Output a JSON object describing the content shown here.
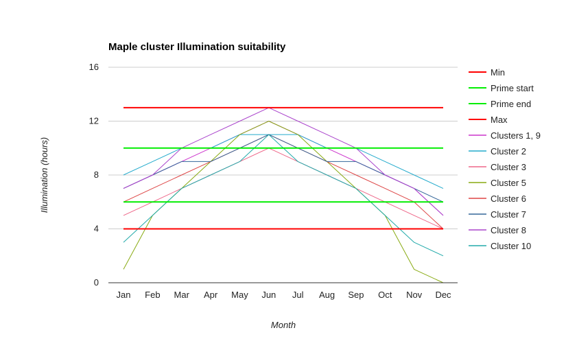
{
  "chart_data": {
    "type": "line",
    "title": "Maple cluster Illumination suitability",
    "xlabel": "Month",
    "ylabel": "Illumination (hours)",
    "categories": [
      "Jan",
      "Feb",
      "Mar",
      "Apr",
      "May",
      "Jun",
      "Jul",
      "Aug",
      "Sep",
      "Oct",
      "Nov",
      "Dec"
    ],
    "ylim": [
      0,
      16
    ],
    "yticks": [
      0,
      4,
      8,
      12,
      16
    ],
    "grid": true,
    "legend_position": "right",
    "series": [
      {
        "name": "Min",
        "color": "#ff0000",
        "width": 2,
        "values": [
          4,
          4,
          4,
          4,
          4,
          4,
          4,
          4,
          4,
          4,
          4,
          4
        ]
      },
      {
        "name": "Prime start",
        "color": "#00ee00",
        "width": 2,
        "values": [
          6,
          6,
          6,
          6,
          6,
          6,
          6,
          6,
          6,
          6,
          6,
          6
        ]
      },
      {
        "name": "Prime end",
        "color": "#00ee00",
        "width": 2,
        "values": [
          10,
          10,
          10,
          10,
          10,
          10,
          10,
          10,
          10,
          10,
          10,
          10
        ]
      },
      {
        "name": "Max",
        "color": "#ff0000",
        "width": 2,
        "values": [
          13,
          13,
          13,
          13,
          13,
          13,
          13,
          13,
          13,
          13,
          13,
          13
        ]
      },
      {
        "name": "Clusters 1, 9",
        "color": "#cc33cc",
        "width": 1,
        "values": [
          7,
          8,
          9,
          10,
          11,
          12,
          11,
          10,
          9,
          8,
          7,
          5
        ]
      },
      {
        "name": "Cluster 2",
        "color": "#22aacc",
        "width": 1,
        "values": [
          8,
          9,
          10,
          10,
          11,
          11,
          11,
          10,
          10,
          9,
          8,
          7
        ]
      },
      {
        "name": "Cluster 3",
        "color": "#ee6688",
        "width": 1,
        "values": [
          5,
          6,
          7,
          8,
          9,
          10,
          9,
          8,
          7,
          6,
          5,
          4
        ]
      },
      {
        "name": "Cluster 5",
        "color": "#88aa11",
        "width": 1,
        "values": [
          1,
          5,
          7,
          9,
          11,
          12,
          11,
          9,
          7,
          5,
          1,
          0
        ]
      },
      {
        "name": "Cluster 6",
        "color": "#dd4444",
        "width": 1,
        "values": [
          6,
          7,
          8,
          9,
          10,
          11,
          10,
          9,
          8,
          7,
          6,
          4
        ]
      },
      {
        "name": "Cluster 7",
        "color": "#336699",
        "width": 1,
        "values": [
          7,
          8,
          9,
          9,
          10,
          11,
          10,
          9,
          9,
          8,
          7,
          6
        ]
      },
      {
        "name": "Cluster 8",
        "color": "#aa44cc",
        "width": 1,
        "values": [
          7,
          8,
          10,
          11,
          12,
          13,
          12,
          11,
          10,
          8,
          7,
          5
        ]
      },
      {
        "name": "Cluster 10",
        "color": "#22aaaa",
        "width": 1,
        "values": [
          3,
          5,
          7,
          8,
          9,
          11,
          9,
          8,
          7,
          5,
          3,
          2
        ]
      }
    ]
  }
}
